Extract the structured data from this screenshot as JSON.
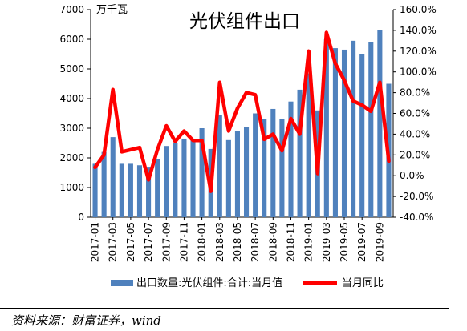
{
  "chart_data": {
    "type": "bar+line",
    "title": "光伏组件出口",
    "unit_left": "万千瓦",
    "left_axis": {
      "min": 0,
      "max": 7000,
      "step": 1000,
      "ticks": [
        "0",
        "1000",
        "2000",
        "3000",
        "4000",
        "5000",
        "6000",
        "7000"
      ]
    },
    "right_axis": {
      "min": -40,
      "max": 160,
      "step": 20,
      "ticks": [
        "-40.0%",
        "-20.0%",
        "0.0%",
        "20.0%",
        "40.0%",
        "60.0%",
        "80.0%",
        "100.0%",
        "120.0%",
        "140.0%",
        "160.0%"
      ]
    },
    "categories": [
      "2017-01",
      "2017-02",
      "2017-03",
      "2017-04",
      "2017-05",
      "2017-06",
      "2017-07",
      "2017-08",
      "2017-09",
      "2017-10",
      "2017-11",
      "2017-12",
      "2018-01",
      "2018-02",
      "2018-03",
      "2018-04",
      "2018-05",
      "2018-06",
      "2018-07",
      "2018-08",
      "2018-09",
      "2018-10",
      "2018-11",
      "2018-12",
      "2019-01",
      "2019-02",
      "2019-03",
      "2019-04",
      "2019-05",
      "2019-06",
      "2019-07",
      "2019-08",
      "2019-09",
      "2019-10"
    ],
    "x_tick_labels": [
      "2017-01",
      "2017-03",
      "2017-05",
      "2017-07",
      "2017-09",
      "2017-11",
      "2018-01",
      "2018-03",
      "2018-05",
      "2018-07",
      "2018-09",
      "2018-11",
      "2019-01",
      "2019-03",
      "2019-05",
      "2019-07",
      "2019-09"
    ],
    "series": [
      {
        "name": "出口数量:光伏组件:合计:当月值",
        "type": "bar",
        "axis": "left",
        "color": "#4f81bd",
        "values": [
          1800,
          2200,
          2700,
          1800,
          1800,
          1750,
          1700,
          1950,
          2400,
          2500,
          2650,
          2600,
          3000,
          2300,
          3450,
          2600,
          2900,
          3050,
          3500,
          3300,
          3650,
          3300,
          3900,
          4300,
          4850,
          3600,
          6000,
          5700,
          5650,
          5950,
          5500,
          5900,
          6300,
          4500
        ]
      },
      {
        "name": "当月同比",
        "type": "line",
        "axis": "right",
        "color": "#ff0000",
        "values": [
          8,
          20,
          83,
          23,
          25,
          27,
          -4,
          25,
          48,
          33,
          43,
          34,
          34,
          -15,
          90,
          43,
          65,
          80,
          78,
          35,
          40,
          24,
          55,
          40,
          120,
          2,
          138,
          108,
          92,
          72,
          68,
          62,
          90,
          14
        ]
      }
    ]
  }
}
